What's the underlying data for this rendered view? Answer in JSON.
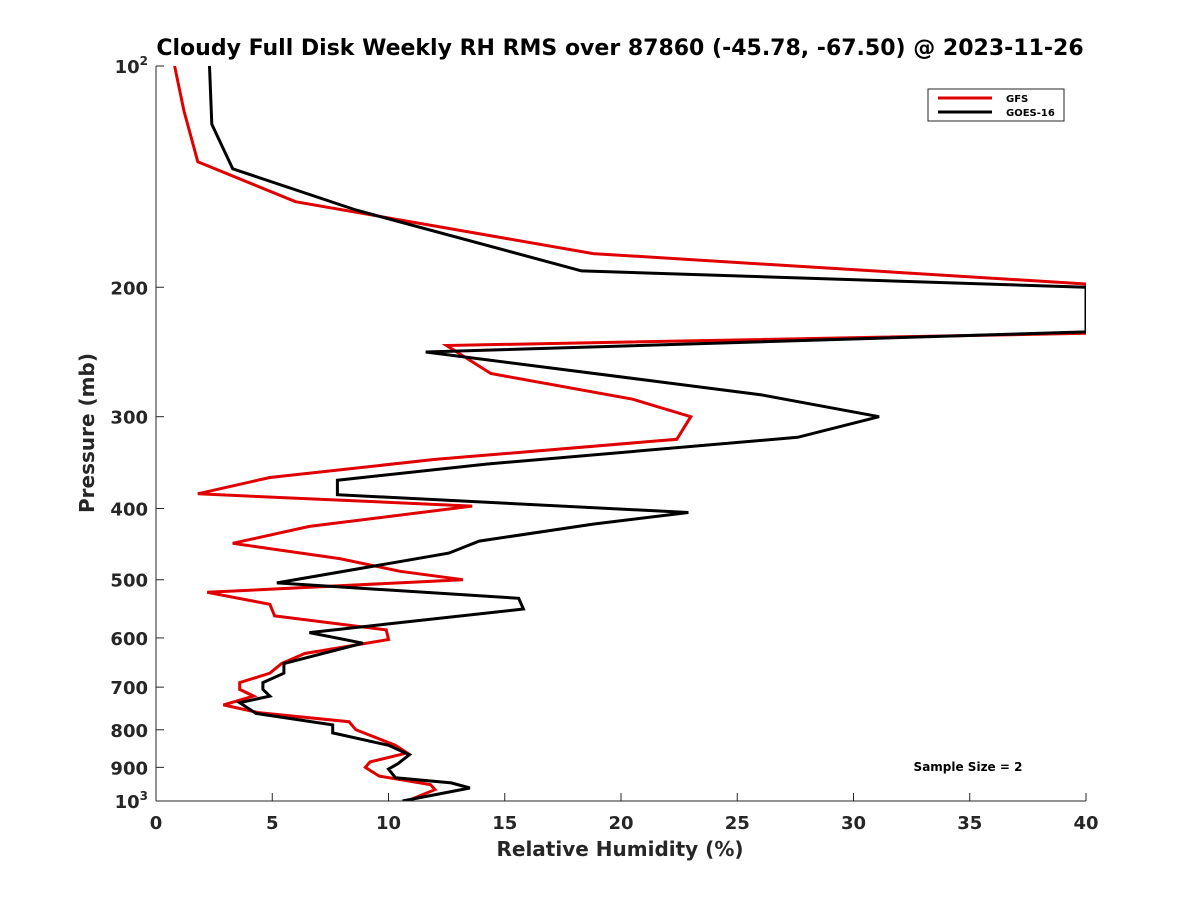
{
  "chart_data": {
    "type": "line",
    "title": "Cloudy Full Disk Weekly RH RMS over 87860 (-45.78, -67.50) @ 2023-11-26",
    "xlabel": "Relative Humidity (%)",
    "ylabel": "Pressure (mb)",
    "xlim": [
      0,
      40
    ],
    "ylim": [
      100,
      1000
    ],
    "yscale": "log",
    "y_reversed": true,
    "grid": false,
    "legend_position": "top-right",
    "xticks": [
      0,
      5,
      10,
      15,
      20,
      25,
      30,
      35,
      40
    ],
    "yticks": [
      {
        "value": 100,
        "base": "10",
        "exp": "2"
      },
      {
        "value": 200,
        "label": "200"
      },
      {
        "value": 300,
        "label": "300"
      },
      {
        "value": 400,
        "label": "400"
      },
      {
        "value": 500,
        "label": "500"
      },
      {
        "value": 600,
        "label": "600"
      },
      {
        "value": 700,
        "label": "700"
      },
      {
        "value": 800,
        "label": "800"
      },
      {
        "value": 900,
        "label": "900"
      },
      {
        "value": 1000,
        "base": "10",
        "exp": "3"
      }
    ],
    "annotation": "Sample Size = 2",
    "series": [
      {
        "name": "GFS",
        "color": "#e00000",
        "points": [
          [
            0.8,
            100
          ],
          [
            1.2,
            115
          ],
          [
            1.8,
            135
          ],
          [
            6.0,
            153
          ],
          [
            18.8,
            180
          ],
          [
            40.0,
            198
          ],
          [
            40.0,
            231
          ],
          [
            12.5,
            240
          ],
          [
            14.4,
            262
          ],
          [
            20.5,
            284
          ],
          [
            23.0,
            300
          ],
          [
            22.4,
            322
          ],
          [
            12.0,
            343
          ],
          [
            4.9,
            363
          ],
          [
            1.8,
            382
          ],
          [
            13.6,
            397
          ],
          [
            6.6,
            423
          ],
          [
            3.3,
            446
          ],
          [
            7.9,
            468
          ],
          [
            10.5,
            487
          ],
          [
            13.2,
            500
          ],
          [
            2.2,
            520
          ],
          [
            4.9,
            540
          ],
          [
            5.1,
            560
          ],
          [
            9.9,
            585
          ],
          [
            10.0,
            603
          ],
          [
            6.4,
            630
          ],
          [
            5.4,
            650
          ],
          [
            4.9,
            670
          ],
          [
            3.6,
            690
          ],
          [
            3.6,
            705
          ],
          [
            4.2,
            720
          ],
          [
            2.9,
            740
          ],
          [
            4.4,
            758
          ],
          [
            8.3,
            780
          ],
          [
            8.6,
            800
          ],
          [
            10.3,
            840
          ],
          [
            10.8,
            860
          ],
          [
            9.2,
            885
          ],
          [
            9.0,
            900
          ],
          [
            9.6,
            925
          ],
          [
            11.8,
            950
          ],
          [
            12.0,
            965
          ],
          [
            10.8,
            1000
          ]
        ]
      },
      {
        "name": "GOES-16",
        "color": "#000000",
        "points": [
          [
            2.3,
            100
          ],
          [
            2.4,
            120
          ],
          [
            3.3,
            138
          ],
          [
            8.6,
            157
          ],
          [
            18.3,
            190
          ],
          [
            40.0,
            200
          ],
          [
            40.0,
            230
          ],
          [
            11.6,
            245
          ],
          [
            26.0,
            280
          ],
          [
            31.1,
            300
          ],
          [
            27.6,
            320
          ],
          [
            14.2,
            348
          ],
          [
            7.8,
            366
          ],
          [
            7.8,
            383
          ],
          [
            22.9,
            405
          ],
          [
            18.8,
            420
          ],
          [
            13.9,
            443
          ],
          [
            12.6,
            460
          ],
          [
            5.2,
            505
          ],
          [
            15.6,
            530
          ],
          [
            15.8,
            548
          ],
          [
            9.8,
            575
          ],
          [
            6.6,
            590
          ],
          [
            8.9,
            610
          ],
          [
            5.5,
            650
          ],
          [
            5.5,
            670
          ],
          [
            4.6,
            690
          ],
          [
            4.6,
            705
          ],
          [
            4.9,
            720
          ],
          [
            3.6,
            735
          ],
          [
            4.3,
            760
          ],
          [
            7.6,
            788
          ],
          [
            7.6,
            808
          ],
          [
            10.0,
            840
          ],
          [
            10.9,
            865
          ],
          [
            10.4,
            890
          ],
          [
            10.0,
            905
          ],
          [
            10.3,
            930
          ],
          [
            12.7,
            945
          ],
          [
            13.5,
            960
          ],
          [
            10.6,
            1000
          ]
        ]
      }
    ]
  }
}
